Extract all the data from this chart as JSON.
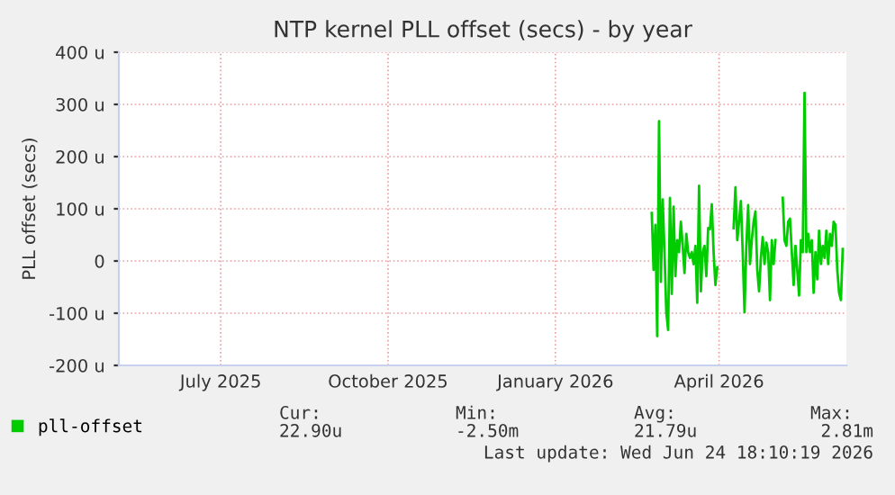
{
  "chart_data": {
    "type": "line",
    "title": "NTP kernel PLL offset (secs) - by year",
    "ylabel": "PLL offset (secs)",
    "x": [
      "2026-03-09",
      "2026-03-10",
      "2026-03-11",
      "2026-03-12",
      "2026-03-13",
      "2026-03-14",
      "2026-03-15",
      "2026-03-16",
      "2026-03-17",
      "2026-03-18",
      "2026-03-19",
      "2026-03-20",
      "2026-03-21",
      "2026-03-22",
      "2026-03-23",
      "2026-03-24",
      "2026-03-25",
      "2026-03-26",
      "2026-03-27",
      "2026-03-28",
      "2026-03-29",
      "2026-03-30",
      "2026-03-31",
      "2026-04-01",
      "2026-04-02",
      "2026-04-03",
      "2026-04-04",
      "2026-04-05",
      "2026-04-06",
      "2026-04-07",
      "2026-04-08",
      "2026-04-09",
      "2026-04-10",
      "2026-04-11",
      "2026-04-12",
      "2026-04-13",
      "2026-04-14",
      "2026-04-15",
      "2026-04-16",
      "2026-04-17",
      "2026-04-18",
      "2026-04-19",
      "2026-04-20",
      "2026-04-21",
      "2026-04-22",
      "2026-04-23",
      "2026-04-24",
      "2026-04-25",
      "2026-04-26",
      "2026-04-27",
      "2026-04-28",
      "2026-04-29",
      "2026-04-30",
      "2026-05-01",
      "2026-05-02",
      "2026-05-03",
      "2026-05-04",
      "2026-05-05",
      "2026-05-06",
      "2026-05-07",
      "2026-05-08",
      "2026-05-09",
      "2026-05-10",
      "2026-05-11",
      "2026-05-12",
      "2026-05-13",
      "2026-05-14",
      "2026-05-15",
      "2026-05-16",
      "2026-05-17",
      "2026-05-18",
      "2026-05-19",
      "2026-05-20",
      "2026-05-21",
      "2026-05-22",
      "2026-05-23",
      "2026-05-24",
      "2026-05-25",
      "2026-05-26",
      "2026-05-27",
      "2026-05-28",
      "2026-05-29",
      "2026-05-30",
      "2026-05-31",
      "2026-06-01",
      "2026-06-02",
      "2026-06-03",
      "2026-06-04",
      "2026-06-05",
      "2026-06-06",
      "2026-06-07",
      "2026-06-08",
      "2026-06-09",
      "2026-06-10",
      "2026-06-11",
      "2026-06-12",
      "2026-06-13",
      "2026-06-14",
      "2026-06-15",
      "2026-06-16",
      "2026-06-17",
      "2026-06-18",
      "2026-06-19",
      "2026-06-20",
      "2026-06-21",
      "2026-06-22"
    ],
    "series": [
      {
        "name": "pll-offset",
        "color": "#00cc00",
        "values": [
          92,
          -17,
          69,
          -144,
          268,
          -40,
          118,
          17,
          -98,
          -132,
          121,
          -63,
          104,
          -29,
          40,
          17,
          75,
          29,
          -23,
          52,
          17,
          6,
          17,
          -6,
          29,
          -80,
          144,
          -58,
          17,
          29,
          -29,
          63,
          61,
          109,
          17,
          -46,
          -12,
          null,
          null,
          null,
          null,
          null,
          null,
          null,
          null,
          63,
          141,
          40,
          75,
          115,
          17,
          -98,
          29,
          107,
          -6,
          40,
          75,
          95,
          -17,
          -58,
          6,
          46,
          -6,
          35,
          17,
          -75,
          40,
          -6,
          40,
          null,
          null,
          null,
          121,
          40,
          29,
          75,
          81,
          17,
          -46,
          29,
          -17,
          -66,
          40,
          17,
          322,
          17,
          52,
          17,
          40,
          -61,
          17,
          -35,
          58,
          -6,
          29,
          6,
          58,
          -6,
          52,
          29,
          75,
          69,
          -17,
          -61,
          -75,
          23
        ]
      }
    ],
    "xlim": [
      "2025-05-20",
      "2026-06-24"
    ],
    "xticks": [
      {
        "value": "2025-07-15",
        "label": "July 2025"
      },
      {
        "value": "2025-10-15",
        "label": "October 2025"
      },
      {
        "value": "2026-01-15",
        "label": "January 2026"
      },
      {
        "value": "2026-04-15",
        "label": "April 2026"
      }
    ],
    "ylim": [
      -200,
      400
    ],
    "yticks": [
      {
        "value": -200,
        "label": "-200 u"
      },
      {
        "value": -100,
        "label": "-100 u"
      },
      0,
      {
        "value": 100,
        "label": "100 u"
      },
      {
        "value": 200,
        "label": "200 u"
      },
      {
        "value": 300,
        "label": "300 u"
      },
      {
        "value": 400,
        "label": "400 u"
      }
    ],
    "grid": true,
    "legend": "bottom left",
    "line_style": "solid",
    "annotations": [
      "Cur:",
      "Min:",
      "Avg:",
      "Max:",
      "22.90u",
      "-2.50m",
      "21.79u",
      "2.81m",
      "Last update: Wed Jun 24 18:10:19 2026"
    ]
  }
}
